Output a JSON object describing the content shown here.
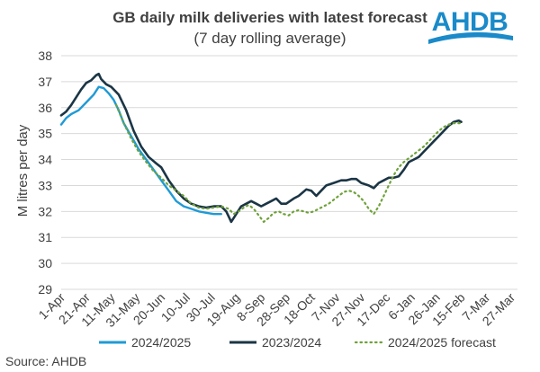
{
  "chart_data": {
    "type": "line",
    "title": "GB daily milk deliveries with latest forecast",
    "subtitle": "(7 day rolling average)",
    "ylabel": "M litres per day",
    "xlabel": "",
    "ylim": [
      29,
      38
    ],
    "yticks": [
      29,
      30,
      31,
      32,
      33,
      34,
      35,
      36,
      37,
      38
    ],
    "categories": [
      "1-Apr",
      "21-Apr",
      "11-May",
      "31-May",
      "20-Jun",
      "10-Jul",
      "30-Jul",
      "19-Aug",
      "8-Sep",
      "28-Sep",
      "18-Oct",
      "7-Nov",
      "27-Nov",
      "17-Dec",
      "6-Jan",
      "26-Jan",
      "15-Feb",
      "7-Mar",
      "27-Mar"
    ],
    "grid": true,
    "legend_position": "bottom",
    "series": [
      {
        "name": "2024/2025",
        "color": "#1f9ad6",
        "style": "solid",
        "points": [
          [
            0,
            35.35
          ],
          [
            4,
            35.6
          ],
          [
            8,
            35.75
          ],
          [
            14,
            35.9
          ],
          [
            20,
            36.2
          ],
          [
            26,
            36.5
          ],
          [
            30,
            36.8
          ],
          [
            34,
            36.75
          ],
          [
            38,
            36.55
          ],
          [
            42,
            36.3
          ],
          [
            46,
            35.9
          ],
          [
            50,
            35.4
          ],
          [
            56,
            34.9
          ],
          [
            62,
            34.4
          ],
          [
            68,
            34.0
          ],
          [
            74,
            33.6
          ],
          [
            80,
            33.2
          ],
          [
            86,
            32.8
          ],
          [
            92,
            32.4
          ],
          [
            98,
            32.2
          ],
          [
            104,
            32.1
          ],
          [
            110,
            32.0
          ],
          [
            116,
            31.95
          ],
          [
            122,
            31.9
          ],
          [
            128,
            31.9
          ]
        ]
      },
      {
        "name": "2023/2024",
        "color": "#1b3545",
        "style": "solid",
        "points": [
          [
            0,
            35.7
          ],
          [
            4,
            35.85
          ],
          [
            8,
            36.1
          ],
          [
            12,
            36.4
          ],
          [
            16,
            36.7
          ],
          [
            20,
            36.95
          ],
          [
            24,
            37.05
          ],
          [
            28,
            37.25
          ],
          [
            30,
            37.3
          ],
          [
            32,
            37.1
          ],
          [
            36,
            36.9
          ],
          [
            40,
            36.8
          ],
          [
            46,
            36.5
          ],
          [
            52,
            35.9
          ],
          [
            58,
            35.1
          ],
          [
            64,
            34.5
          ],
          [
            70,
            34.1
          ],
          [
            76,
            33.85
          ],
          [
            80,
            33.7
          ],
          [
            86,
            33.2
          ],
          [
            92,
            32.8
          ],
          [
            98,
            32.5
          ],
          [
            104,
            32.3
          ],
          [
            110,
            32.2
          ],
          [
            116,
            32.15
          ],
          [
            122,
            32.2
          ],
          [
            128,
            32.2
          ],
          [
            132,
            32.0
          ],
          [
            136,
            31.6
          ],
          [
            140,
            31.9
          ],
          [
            144,
            32.2
          ],
          [
            148,
            32.3
          ],
          [
            152,
            32.4
          ],
          [
            156,
            32.3
          ],
          [
            160,
            32.2
          ],
          [
            164,
            32.3
          ],
          [
            168,
            32.4
          ],
          [
            172,
            32.5
          ],
          [
            176,
            32.3
          ],
          [
            180,
            32.3
          ],
          [
            186,
            32.5
          ],
          [
            190,
            32.6
          ],
          [
            196,
            32.85
          ],
          [
            200,
            32.8
          ],
          [
            204,
            32.6
          ],
          [
            208,
            32.8
          ],
          [
            212,
            33.0
          ],
          [
            218,
            33.1
          ],
          [
            224,
            33.2
          ],
          [
            228,
            33.2
          ],
          [
            232,
            33.25
          ],
          [
            236,
            33.25
          ],
          [
            240,
            33.1
          ],
          [
            246,
            33.0
          ],
          [
            250,
            32.9
          ],
          [
            254,
            33.1
          ],
          [
            258,
            33.2
          ],
          [
            262,
            33.3
          ],
          [
            266,
            33.3
          ],
          [
            270,
            33.35
          ],
          [
            274,
            33.6
          ],
          [
            278,
            33.9
          ],
          [
            282,
            34.0
          ],
          [
            286,
            34.1
          ],
          [
            290,
            34.3
          ],
          [
            294,
            34.5
          ],
          [
            298,
            34.7
          ],
          [
            302,
            34.9
          ],
          [
            306,
            35.1
          ],
          [
            310,
            35.3
          ],
          [
            314,
            35.45
          ],
          [
            318,
            35.5
          ],
          [
            320,
            35.45
          ]
        ]
      },
      {
        "name": "2024/2025 forecast",
        "color": "#6fa23a",
        "style": "dotted",
        "points": [
          [
            44,
            36.1
          ],
          [
            50,
            35.4
          ],
          [
            56,
            34.8
          ],
          [
            62,
            34.3
          ],
          [
            68,
            33.9
          ],
          [
            74,
            33.55
          ],
          [
            80,
            33.3
          ],
          [
            86,
            33.0
          ],
          [
            92,
            32.8
          ],
          [
            98,
            32.6
          ],
          [
            104,
            32.3
          ],
          [
            110,
            32.15
          ],
          [
            116,
            32.1
          ],
          [
            122,
            32.15
          ],
          [
            128,
            32.2
          ],
          [
            134,
            32.1
          ],
          [
            138,
            31.9
          ],
          [
            142,
            32.0
          ],
          [
            146,
            32.15
          ],
          [
            150,
            32.25
          ],
          [
            154,
            32.1
          ],
          [
            158,
            31.85
          ],
          [
            162,
            31.6
          ],
          [
            166,
            31.75
          ],
          [
            170,
            31.95
          ],
          [
            174,
            32.0
          ],
          [
            178,
            31.9
          ],
          [
            182,
            31.85
          ],
          [
            186,
            32.0
          ],
          [
            190,
            32.05
          ],
          [
            194,
            32.0
          ],
          [
            198,
            31.95
          ],
          [
            202,
            32.0
          ],
          [
            206,
            32.1
          ],
          [
            210,
            32.2
          ],
          [
            214,
            32.3
          ],
          [
            218,
            32.45
          ],
          [
            222,
            32.6
          ],
          [
            226,
            32.75
          ],
          [
            230,
            32.8
          ],
          [
            234,
            32.75
          ],
          [
            238,
            32.6
          ],
          [
            242,
            32.4
          ],
          [
            246,
            32.1
          ],
          [
            250,
            31.9
          ],
          [
            254,
            32.2
          ],
          [
            258,
            32.6
          ],
          [
            262,
            33.0
          ],
          [
            266,
            33.4
          ],
          [
            270,
            33.7
          ],
          [
            274,
            33.9
          ],
          [
            278,
            34.05
          ],
          [
            282,
            34.2
          ],
          [
            286,
            34.35
          ],
          [
            290,
            34.5
          ],
          [
            294,
            34.7
          ],
          [
            298,
            34.9
          ],
          [
            302,
            35.1
          ],
          [
            306,
            35.25
          ],
          [
            310,
            35.35
          ],
          [
            314,
            35.4
          ],
          [
            318,
            35.4
          ],
          [
            320,
            35.4
          ]
        ]
      }
    ],
    "source": "Source: AHDB"
  },
  "logo": {
    "text": "AHDB",
    "color": "#1a8ac9"
  }
}
